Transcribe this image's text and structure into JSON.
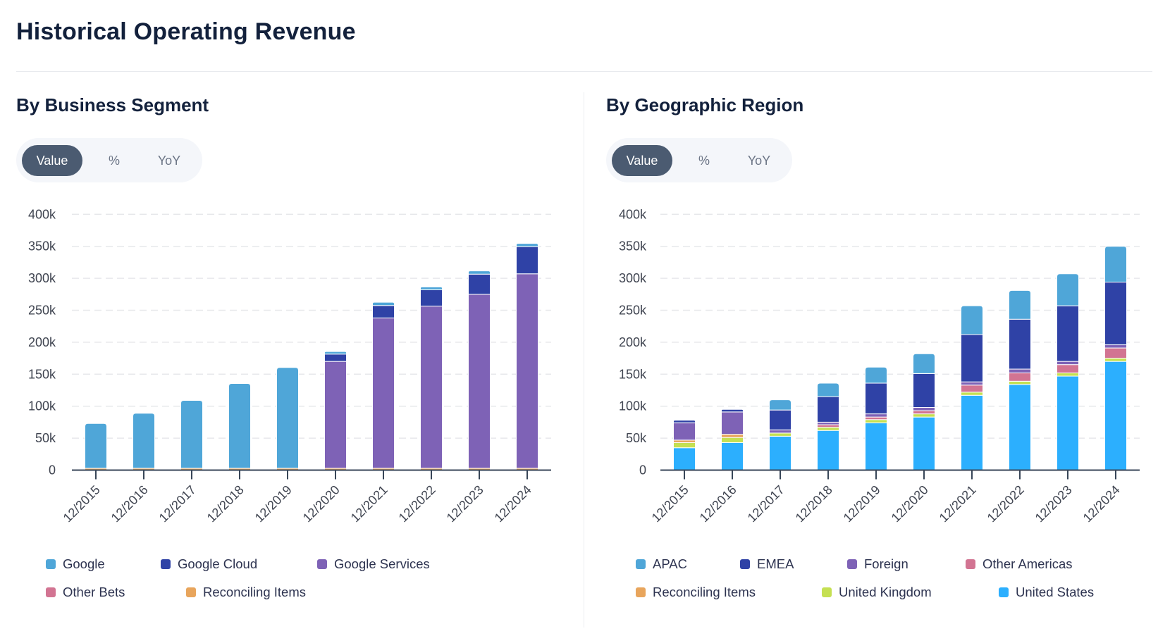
{
  "page": {
    "title": "Historical Operating Revenue"
  },
  "panels": [
    {
      "heading": "By Business Segment",
      "toggle": {
        "options": [
          "Value",
          "%",
          "YoY"
        ],
        "active": "Value"
      }
    },
    {
      "heading": "By Geographic Region",
      "toggle": {
        "options": [
          "Value",
          "%",
          "YoY"
        ],
        "active": "Value"
      }
    }
  ],
  "chart_data": [
    {
      "type": "bar",
      "stacked": true,
      "title": "By Business Segment",
      "xlabel": "",
      "ylabel": "",
      "unit": "k",
      "categories": [
        "12/2015",
        "12/2016",
        "12/2017",
        "12/2018",
        "12/2019",
        "12/2020",
        "12/2021",
        "12/2022",
        "12/2023",
        "12/2024"
      ],
      "yticks": [
        0,
        50,
        100,
        150,
        200,
        250,
        300,
        350,
        400
      ],
      "ytick_labels": [
        "0",
        "50k",
        "100k",
        "150k",
        "200k",
        "250k",
        "300k",
        "350k",
        "400k"
      ],
      "ylim": [
        0,
        400
      ],
      "grid": true,
      "legend_position": "bottom",
      "series": [
        {
          "name": "Google",
          "color": "#4fa6d8",
          "values": [
            70,
            86,
            106,
            132.5,
            157.5,
            4,
            5,
            4.5,
            5,
            5
          ]
        },
        {
          "name": "Google Cloud",
          "color": "#2f42a6",
          "values": [
            0,
            0,
            0,
            0,
            0,
            11.5,
            19.5,
            25.5,
            31.5,
            42.5
          ]
        },
        {
          "name": "Google Services",
          "color": "#7e62b6",
          "values": [
            0,
            0,
            0,
            0,
            0,
            167,
            235,
            253.5,
            272,
            304
          ]
        },
        {
          "name": "Other Bets",
          "color": "#d27492",
          "values": [
            0,
            0,
            0,
            0,
            0,
            0,
            0,
            0,
            0,
            0
          ]
        },
        {
          "name": "Reconciling Items",
          "color": "#e8a55c",
          "values": [
            3,
            3,
            3,
            3,
            3,
            3,
            3,
            3,
            3,
            3
          ]
        }
      ]
    },
    {
      "type": "bar",
      "stacked": true,
      "title": "By Geographic Region",
      "xlabel": "",
      "ylabel": "",
      "unit": "k",
      "categories": [
        "12/2015",
        "12/2016",
        "12/2017",
        "12/2018",
        "12/2019",
        "12/2020",
        "12/2021",
        "12/2022",
        "12/2023",
        "12/2024"
      ],
      "yticks": [
        0,
        50,
        100,
        150,
        200,
        250,
        300,
        350,
        400
      ],
      "ytick_labels": [
        "0",
        "50k",
        "100k",
        "150k",
        "200k",
        "250k",
        "300k",
        "350k",
        "400k"
      ],
      "ylim": [
        0,
        400
      ],
      "grid": true,
      "legend_position": "bottom",
      "series": [
        {
          "name": "APAC",
          "color": "#4fa6d8",
          "values": [
            0,
            0,
            16,
            21,
            25,
            31,
            45,
            45,
            50,
            56
          ]
        },
        {
          "name": "EMEA",
          "color": "#2f42a6",
          "values": [
            4,
            4,
            31,
            40,
            48,
            53,
            74,
            78,
            87,
            98
          ]
        },
        {
          "name": "Foreign",
          "color": "#7e62b6",
          "values": [
            27,
            35,
            5,
            4,
            5,
            5,
            5,
            6,
            5,
            5
          ]
        },
        {
          "name": "Other Americas",
          "color": "#d27492",
          "values": [
            0,
            0,
            0,
            4,
            4,
            5,
            11,
            13,
            13,
            16
          ]
        },
        {
          "name": "Reconciling Items",
          "color": "#e8a55c",
          "values": [
            4,
            5,
            0,
            0,
            0,
            0,
            0,
            0,
            0,
            0
          ]
        },
        {
          "name": "United Kingdom",
          "color": "#c5e052",
          "values": [
            8,
            8,
            5,
            5,
            5,
            5,
            5,
            5,
            5,
            5
          ]
        },
        {
          "name": "United States",
          "color": "#2caffe",
          "values": [
            35,
            43,
            53,
            62,
            74,
            83,
            117,
            134,
            147,
            170
          ]
        }
      ]
    }
  ]
}
